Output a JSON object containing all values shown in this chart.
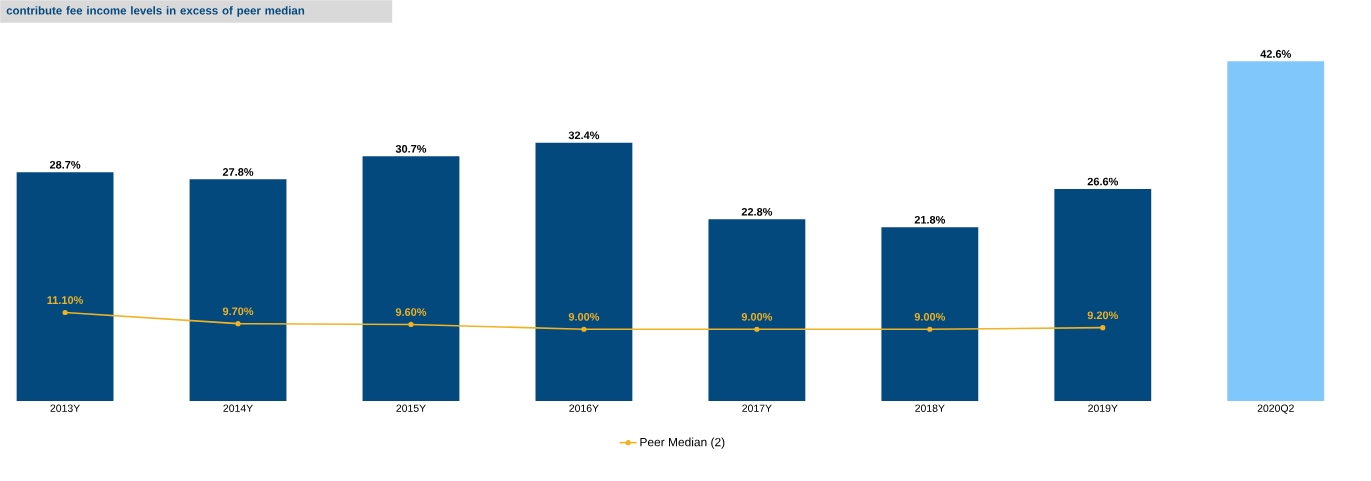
{
  "chart_data": {
    "type": "bar",
    "annotations": [
      "contribute fee income levels in excess of peer median"
    ],
    "categories": [
      "2013Y",
      "2014Y",
      "2015Y",
      "2016Y",
      "2017Y",
      "2018Y",
      "2019Y",
      "2020Q2"
    ],
    "series": [
      {
        "colors": [
          "#03497e",
          "#03497e",
          "#03497e",
          "#03497e",
          "#03497e",
          "#03497e",
          "#03497e",
          "#80c8fc"
        ],
        "values": [
          28.7,
          27.8,
          30.7,
          32.4,
          22.8,
          21.8,
          26.6,
          42.6
        ],
        "value_labels": [
          "28.7%",
          "27.8%",
          "30.7%",
          "32.4%",
          "22.8%",
          "21.8%",
          "26.6%",
          "42.6%"
        ]
      },
      {
        "type": "line",
        "name": "Peer Median (2)",
        "color": "#f0b323",
        "values": [
          11.1,
          9.7,
          9.6,
          9.0,
          9.0,
          9.0,
          9.2,
          null
        ],
        "value_labels": [
          "11.10%",
          "9.70%",
          "9.60%",
          "9.00%",
          "9.00%",
          "9.00%",
          "9.20%",
          null
        ]
      }
    ],
    "marker": "circle",
    "legend": "bottom"
  }
}
